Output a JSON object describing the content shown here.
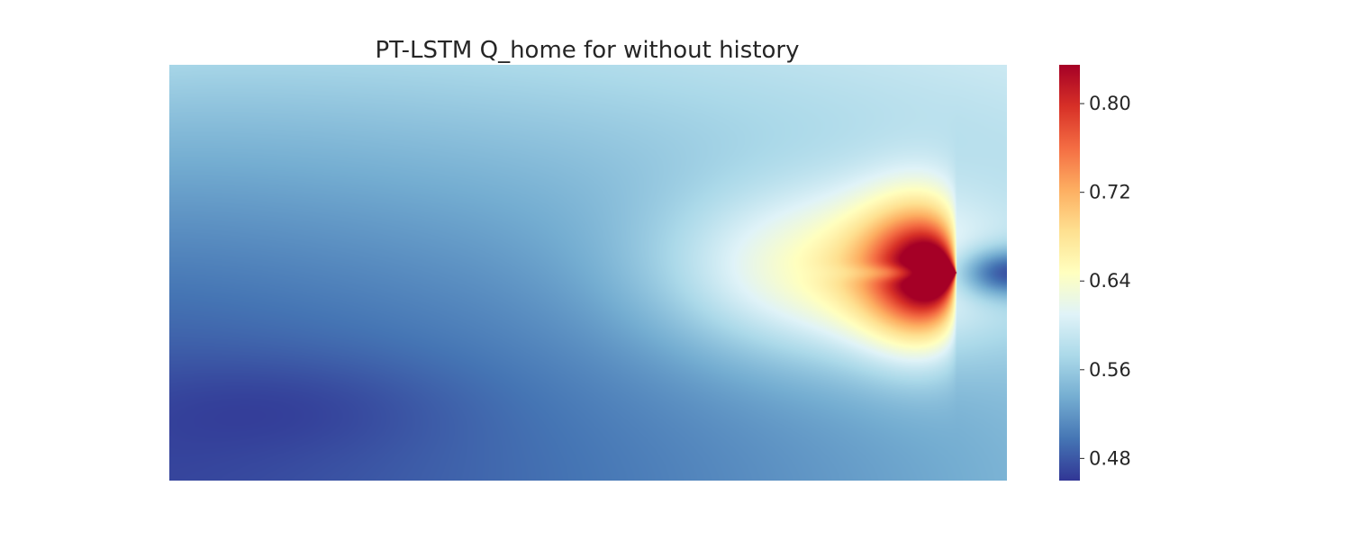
{
  "chart_data": {
    "type": "heatmap",
    "title": "PT-LSTM Q_home for  without history",
    "xlabel": "",
    "ylabel": "",
    "x_ticks_visible": false,
    "y_ticks_visible": false,
    "grid": false,
    "colormap": "RdYlBu_r",
    "colormap_stops": [
      "#313695",
      "#4575b4",
      "#74add1",
      "#abd9e9",
      "#e0f3f8",
      "#ffffbf",
      "#fee090",
      "#fdae61",
      "#f46d43",
      "#d73027",
      "#a50026"
    ],
    "value_range": [
      0.46,
      0.835
    ],
    "colorbar": {
      "position": "right",
      "ticks": [
        0.48,
        0.56,
        0.64,
        0.72,
        0.8
      ],
      "tick_labels": [
        "0.48",
        "0.56",
        "0.64",
        "0.72",
        "0.80"
      ]
    },
    "field_description": "Probability surface over a pitch half: low values (~0.47) at left-bottom, rising to a two-lobed hotspot (max ~0.83) near the right edge at vertical centre, with a dip (~0.50) just right of the hotspot along the centre line.",
    "features": {
      "hotspot_x": 0.94,
      "hotspot_y": 0.5,
      "peak_value": 0.83,
      "lobe_value": 0.8,
      "min_value": 0.47,
      "top_left_value": 0.57
    }
  }
}
